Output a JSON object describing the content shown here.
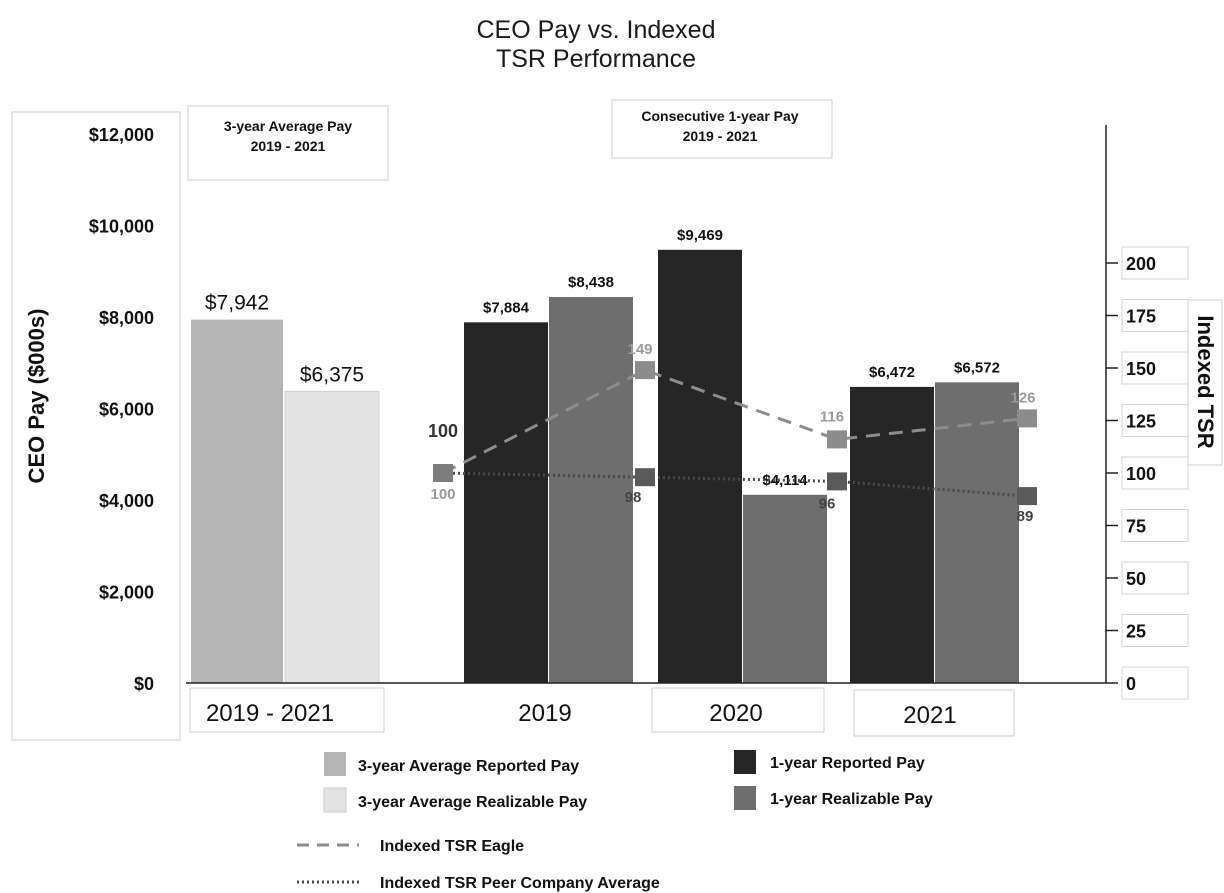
{
  "chart_data": {
    "type": "bar",
    "title_lines": [
      "CEO Pay vs. Indexed",
      "TSR Performance"
    ],
    "ylabel": "CEO Pay ($000s)",
    "ylabel_right": "Indexed TSR",
    "ylim": [
      0,
      12000
    ],
    "y_ticks": [
      {
        "value": 0,
        "label": "$0"
      },
      {
        "value": 2000,
        "label": "$2,000"
      },
      {
        "value": 4000,
        "label": "$4,000"
      },
      {
        "value": 6000,
        "label": "$6,000"
      },
      {
        "value": 8000,
        "label": "$8,000"
      },
      {
        "value": 10000,
        "label": "$10,000"
      },
      {
        "value": 12000,
        "label": "$12,000"
      }
    ],
    "ylim_right": [
      0,
      210
    ],
    "y2_ticks": [
      {
        "value": 0,
        "label": "0"
      },
      {
        "value": 25,
        "label": "25"
      },
      {
        "value": 50,
        "label": "50"
      },
      {
        "value": 75,
        "label": "75"
      },
      {
        "value": 100,
        "label": "100"
      },
      {
        "value": 125,
        "label": "125"
      },
      {
        "value": 150,
        "label": "150"
      },
      {
        "value": 175,
        "label": "175"
      },
      {
        "value": 200,
        "label": "200"
      }
    ],
    "panels": [
      {
        "title_lines": [
          "3-year Average Pay",
          "2019 - 2021"
        ]
      },
      {
        "title_lines": [
          "Consecutive 1-year Pay",
          "2019 - 2021"
        ]
      }
    ],
    "three_year": {
      "category": "2019 - 2021",
      "bars": [
        {
          "series": "3-year Average Reported Pay",
          "value": 7942,
          "label": "$7,942",
          "color": "#b5b5b5"
        },
        {
          "series": "3-year Average Realizable Pay",
          "value": 6375,
          "label": "$6,375",
          "color": "#e3e3e3"
        }
      ]
    },
    "annual": {
      "categories": [
        "2019",
        "2020",
        "2021"
      ],
      "series": [
        {
          "name": "1-year Reported Pay",
          "color": "#262626",
          "values": [
            7884,
            9469,
            6472
          ],
          "labels": [
            "$7,884",
            "$9,469",
            "$6,472"
          ]
        },
        {
          "name": "1-year Realizable Pay",
          "color": "#6e6e6e",
          "values": [
            8438,
            4114,
            6572
          ],
          "labels": [
            "$8,438",
            "$4,114",
            "$6,572"
          ]
        }
      ]
    },
    "tsr_series": [
      {
        "name": "Indexed TSR Eagle",
        "style": "dashed",
        "color": "#8c8c8c",
        "points": [
          {
            "x": "2018",
            "value": 100,
            "label": "100"
          },
          {
            "x": "2019",
            "value": 149,
            "label": "149"
          },
          {
            "x": "2020",
            "value": 116,
            "label": "116"
          },
          {
            "x": "2021",
            "value": 126,
            "label": "126"
          }
        ]
      },
      {
        "name": "Indexed TSR Peer Company Average",
        "style": "dotted",
        "color": "#4a4a4a",
        "points": [
          {
            "x": "2018",
            "value": 100,
            "label": "100"
          },
          {
            "x": "2019",
            "value": 98,
            "label": "98"
          },
          {
            "x": "2020",
            "value": 96,
            "label": "96"
          },
          {
            "x": "2021",
            "value": 89,
            "label": "89"
          }
        ]
      }
    ],
    "legend": {
      "placement": "bottom",
      "items": [
        {
          "label": "3-year Average Reported Pay",
          "kind": "swatch",
          "color": "#b5b5b5"
        },
        {
          "label": "1-year Reported Pay",
          "kind": "swatch",
          "color": "#262626"
        },
        {
          "label": "3-year Average Realizable Pay",
          "kind": "swatch",
          "color": "#e3e3e3"
        },
        {
          "label": "1-year Realizable Pay",
          "kind": "swatch",
          "color": "#6e6e6e"
        },
        {
          "label": "Indexed TSR Eagle",
          "kind": "dashed",
          "color": "#8c8c8c"
        },
        {
          "label": "Indexed TSR Peer Company Average",
          "kind": "dotted",
          "color": "#4a4a4a"
        }
      ]
    }
  }
}
